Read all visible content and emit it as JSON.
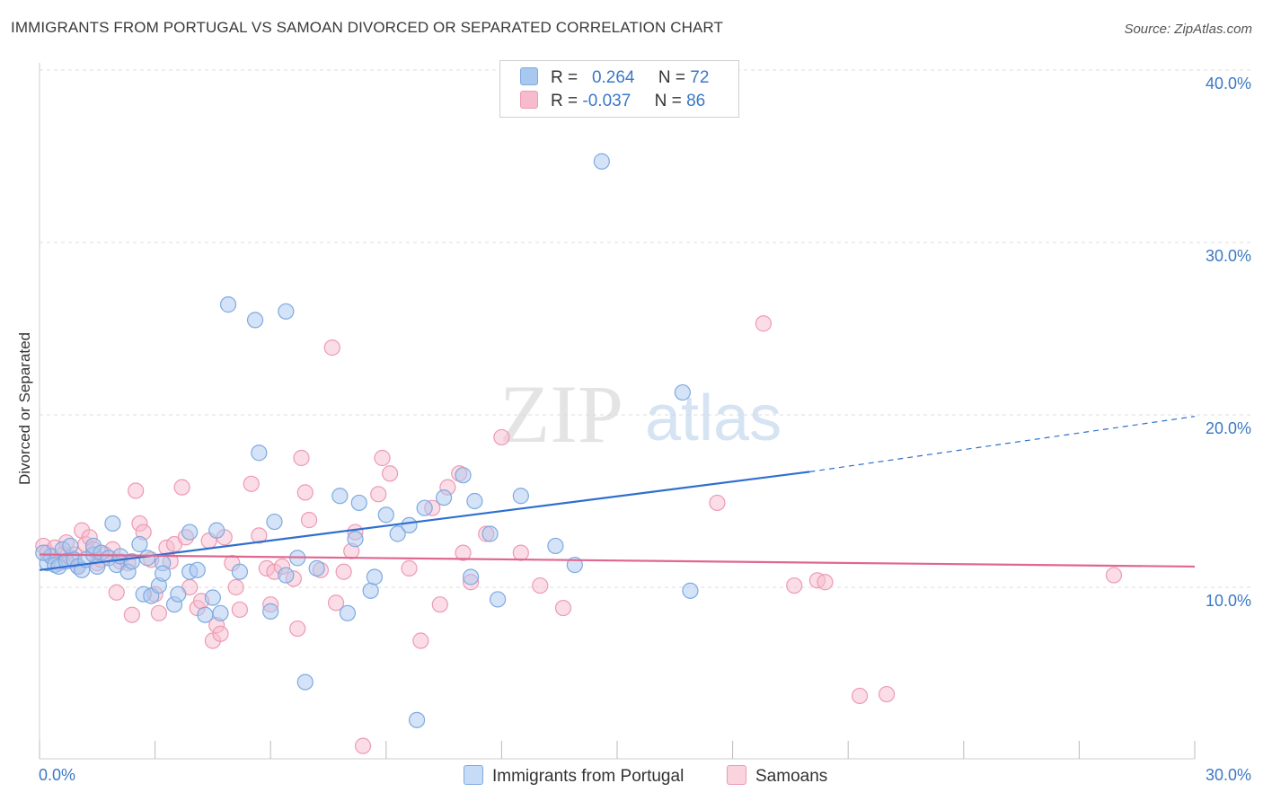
{
  "header": {
    "title": "IMMIGRANTS FROM PORTUGAL VS SAMOAN DIVORCED OR SEPARATED CORRELATION CHART",
    "source": "Source: ZipAtlas.com"
  },
  "legend_top": {
    "rows": [
      {
        "r_label": "R =",
        "r_value": "0.264",
        "n_label": "N =",
        "n_value": "72"
      },
      {
        "r_label": "R =",
        "r_value": "-0.037",
        "n_label": "N =",
        "n_value": "86"
      }
    ]
  },
  "legend_bottom": {
    "items": [
      "Immigrants from Portugal",
      "Samoans"
    ]
  },
  "colors": {
    "blue_fill": "#a9c8ef",
    "blue_stroke": "#7eaae0",
    "blue_line": "#2f6fcf",
    "pink_fill": "#f6bccd",
    "pink_stroke": "#ee9ab3",
    "pink_line": "#e0678f",
    "tick_label": "#3b78c4",
    "grid": "#dddddd"
  },
  "chart_data": {
    "type": "scatter",
    "title": "IMMIGRANTS FROM PORTUGAL VS SAMOAN DIVORCED OR SEPARATED CORRELATION CHART",
    "xlabel": "",
    "ylabel": "Divorced or Separated",
    "xlim": [
      0,
      30
    ],
    "ylim": [
      0,
      42
    ],
    "x_tick_labels": [
      "0.0%",
      "30.0%"
    ],
    "y_ticks": [
      10,
      20,
      30,
      40
    ],
    "y_tick_labels": [
      "10.0%",
      "20.0%",
      "30.0%",
      "40.0%"
    ],
    "grid": "horizontal dashed",
    "legend_position": "top-center",
    "watermark": {
      "part1": "ZIP",
      "part2": "atlas"
    },
    "series": [
      {
        "name": "Immigrants from Portugal",
        "color": "blue",
        "r": 0.264,
        "n": 72,
        "trend": {
          "x0": 0,
          "y0": 11.0,
          "x1": 20.0,
          "y1": 16.7,
          "x_ext": 30,
          "y_ext": 19.6
        },
        "points": [
          [
            0.2,
            11.4
          ],
          [
            0.3,
            11.8
          ],
          [
            0.4,
            11.3
          ],
          [
            0.5,
            11.2
          ],
          [
            0.6,
            12.2
          ],
          [
            0.7,
            11.5
          ],
          [
            0.8,
            12.4
          ],
          [
            0.9,
            11.6
          ],
          [
            1.0,
            11.2
          ],
          [
            1.1,
            11.0
          ],
          [
            1.2,
            11.6
          ],
          [
            1.4,
            11.9
          ],
          [
            1.4,
            12.4
          ],
          [
            1.5,
            11.2
          ],
          [
            1.6,
            12.0
          ],
          [
            1.8,
            11.7
          ],
          [
            2.0,
            11.3
          ],
          [
            2.1,
            11.8
          ],
          [
            2.3,
            10.9
          ],
          [
            2.4,
            11.5
          ],
          [
            1.9,
            13.7
          ],
          [
            2.6,
            12.5
          ],
          [
            2.7,
            9.6
          ],
          [
            2.8,
            11.7
          ],
          [
            2.9,
            9.5
          ],
          [
            3.1,
            10.1
          ],
          [
            3.2,
            11.4
          ],
          [
            3.2,
            10.8
          ],
          [
            3.5,
            9.0
          ],
          [
            3.6,
            9.6
          ],
          [
            3.9,
            10.9
          ],
          [
            3.9,
            13.2
          ],
          [
            4.1,
            11.0
          ],
          [
            4.3,
            8.4
          ],
          [
            4.5,
            9.4
          ],
          [
            4.6,
            13.3
          ],
          [
            4.7,
            8.5
          ],
          [
            4.9,
            26.4
          ],
          [
            5.2,
            10.9
          ],
          [
            5.6,
            25.5
          ],
          [
            5.7,
            17.8
          ],
          [
            6.0,
            8.6
          ],
          [
            6.1,
            13.8
          ],
          [
            6.4,
            10.7
          ],
          [
            6.4,
            26.0
          ],
          [
            6.7,
            11.7
          ],
          [
            6.9,
            4.5
          ],
          [
            7.2,
            11.1
          ],
          [
            7.8,
            15.3
          ],
          [
            8.0,
            8.5
          ],
          [
            8.2,
            12.8
          ],
          [
            8.3,
            14.9
          ],
          [
            8.6,
            9.8
          ],
          [
            8.7,
            10.6
          ],
          [
            9.0,
            14.2
          ],
          [
            9.3,
            13.1
          ],
          [
            9.6,
            13.6
          ],
          [
            9.8,
            2.3
          ],
          [
            10.0,
            14.6
          ],
          [
            10.5,
            15.2
          ],
          [
            11.0,
            16.5
          ],
          [
            11.2,
            10.6
          ],
          [
            11.3,
            15.0
          ],
          [
            11.7,
            13.1
          ],
          [
            11.9,
            9.3
          ],
          [
            12.5,
            15.3
          ],
          [
            13.4,
            12.4
          ],
          [
            13.9,
            11.3
          ],
          [
            14.6,
            34.7
          ],
          [
            16.7,
            21.3
          ],
          [
            16.9,
            9.8
          ],
          [
            0.1,
            12.0
          ]
        ]
      },
      {
        "name": "Samoans",
        "color": "pink",
        "r": -0.037,
        "n": 86,
        "trend": {
          "x0": 0,
          "y0": 11.9,
          "x1": 30,
          "y1": 11.2
        },
        "points": [
          [
            0.1,
            12.4
          ],
          [
            0.2,
            12.0
          ],
          [
            0.3,
            11.8
          ],
          [
            0.4,
            12.3
          ],
          [
            0.5,
            11.4
          ],
          [
            0.6,
            11.9
          ],
          [
            0.7,
            12.6
          ],
          [
            0.8,
            11.7
          ],
          [
            0.9,
            11.9
          ],
          [
            1.0,
            11.2
          ],
          [
            1.1,
            13.3
          ],
          [
            1.2,
            12.5
          ],
          [
            1.3,
            12.9
          ],
          [
            1.4,
            12.2
          ],
          [
            1.5,
            11.4
          ],
          [
            1.6,
            11.6
          ],
          [
            1.7,
            11.9
          ],
          [
            1.9,
            12.2
          ],
          [
            2.0,
            9.7
          ],
          [
            2.1,
            11.5
          ],
          [
            2.3,
            11.4
          ],
          [
            2.4,
            8.4
          ],
          [
            2.5,
            15.6
          ],
          [
            2.6,
            13.7
          ],
          [
            2.7,
            13.2
          ],
          [
            2.9,
            11.6
          ],
          [
            3.0,
            9.6
          ],
          [
            3.1,
            8.5
          ],
          [
            3.3,
            12.3
          ],
          [
            3.4,
            11.5
          ],
          [
            3.5,
            12.5
          ],
          [
            3.7,
            15.8
          ],
          [
            3.8,
            12.9
          ],
          [
            3.9,
            10.0
          ],
          [
            4.1,
            8.8
          ],
          [
            4.2,
            9.2
          ],
          [
            4.4,
            12.7
          ],
          [
            4.5,
            6.9
          ],
          [
            4.6,
            7.8
          ],
          [
            4.7,
            7.3
          ],
          [
            4.8,
            12.9
          ],
          [
            5.0,
            11.4
          ],
          [
            5.1,
            10.0
          ],
          [
            5.2,
            8.7
          ],
          [
            5.5,
            16.0
          ],
          [
            5.7,
            13.0
          ],
          [
            5.9,
            11.1
          ],
          [
            6.0,
            9.0
          ],
          [
            6.1,
            10.9
          ],
          [
            6.3,
            11.2
          ],
          [
            6.6,
            10.5
          ],
          [
            6.7,
            7.6
          ],
          [
            6.8,
            17.5
          ],
          [
            6.9,
            15.5
          ],
          [
            7.0,
            13.9
          ],
          [
            7.3,
            11.0
          ],
          [
            7.6,
            23.9
          ],
          [
            7.7,
            9.1
          ],
          [
            7.9,
            10.9
          ],
          [
            8.1,
            12.1
          ],
          [
            8.2,
            13.2
          ],
          [
            8.4,
            0.8
          ],
          [
            8.8,
            15.4
          ],
          [
            8.9,
            17.5
          ],
          [
            9.1,
            16.6
          ],
          [
            9.6,
            11.1
          ],
          [
            9.9,
            6.9
          ],
          [
            10.2,
            14.6
          ],
          [
            10.4,
            9.0
          ],
          [
            10.6,
            15.8
          ],
          [
            10.9,
            16.6
          ],
          [
            11.0,
            12.0
          ],
          [
            11.2,
            10.3
          ],
          [
            11.6,
            13.1
          ],
          [
            12.0,
            18.7
          ],
          [
            12.5,
            12.0
          ],
          [
            13.0,
            10.1
          ],
          [
            13.6,
            8.8
          ],
          [
            17.6,
            14.9
          ],
          [
            18.8,
            25.3
          ],
          [
            19.6,
            10.1
          ],
          [
            20.2,
            10.4
          ],
          [
            20.4,
            10.3
          ],
          [
            21.3,
            3.7
          ],
          [
            22.0,
            3.8
          ],
          [
            27.9,
            10.7
          ]
        ]
      }
    ]
  }
}
